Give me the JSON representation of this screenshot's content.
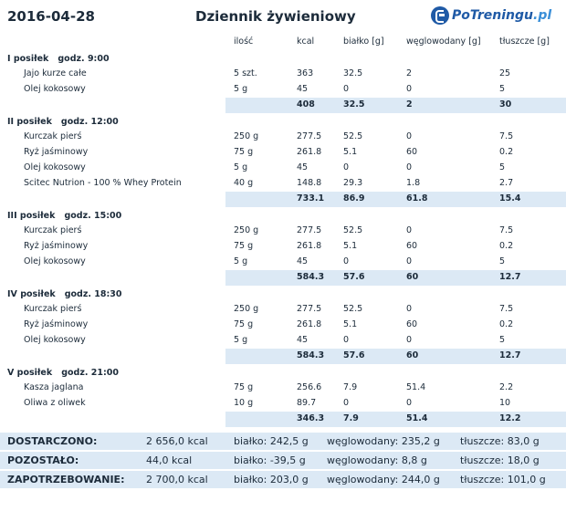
{
  "header": {
    "date": "2016-04-28",
    "title": "Dziennik żywieniowy",
    "logo_part1": "PoTreningu",
    "logo_part2": ".pl"
  },
  "columns": {
    "qty": "ilość",
    "kcal": "kcal",
    "protein": "białko [g]",
    "carbs": "węglowodany [g]",
    "fat": "tłuszcze [g]"
  },
  "meals": [
    {
      "name": "I posiłek",
      "hour": "godz. 9:00",
      "items": [
        {
          "name": "Jajo kurze całe",
          "qty": "5 szt.",
          "kcal": "363",
          "protein": "32.5",
          "carbs": "2",
          "fat": "25"
        },
        {
          "name": "Olej kokosowy",
          "qty": "5 g",
          "kcal": "45",
          "protein": "0",
          "carbs": "0",
          "fat": "5"
        }
      ],
      "sum": {
        "kcal": "408",
        "protein": "32.5",
        "carbs": "2",
        "fat": "30"
      }
    },
    {
      "name": "II posiłek",
      "hour": "godz. 12:00",
      "items": [
        {
          "name": "Kurczak pierś",
          "qty": "250 g",
          "kcal": "277.5",
          "protein": "52.5",
          "carbs": "0",
          "fat": "7.5"
        },
        {
          "name": "Ryż jaśminowy",
          "qty": "75 g",
          "kcal": "261.8",
          "protein": "5.1",
          "carbs": "60",
          "fat": "0.2"
        },
        {
          "name": "Olej kokosowy",
          "qty": "5 g",
          "kcal": "45",
          "protein": "0",
          "carbs": "0",
          "fat": "5"
        },
        {
          "name": "Scitec Nutrion - 100 % Whey Protein",
          "qty": "40 g",
          "kcal": "148.8",
          "protein": "29.3",
          "carbs": "1.8",
          "fat": "2.7"
        }
      ],
      "sum": {
        "kcal": "733.1",
        "protein": "86.9",
        "carbs": "61.8",
        "fat": "15.4"
      }
    },
    {
      "name": "III posiłek",
      "hour": "godz. 15:00",
      "items": [
        {
          "name": "Kurczak pierś",
          "qty": "250 g",
          "kcal": "277.5",
          "protein": "52.5",
          "carbs": "0",
          "fat": "7.5"
        },
        {
          "name": "Ryż jaśminowy",
          "qty": "75 g",
          "kcal": "261.8",
          "protein": "5.1",
          "carbs": "60",
          "fat": "0.2"
        },
        {
          "name": "Olej kokosowy",
          "qty": "5 g",
          "kcal": "45",
          "protein": "0",
          "carbs": "0",
          "fat": "5"
        }
      ],
      "sum": {
        "kcal": "584.3",
        "protein": "57.6",
        "carbs": "60",
        "fat": "12.7"
      }
    },
    {
      "name": "IV posiłek",
      "hour": "godz. 18:30",
      "items": [
        {
          "name": "Kurczak pierś",
          "qty": "250 g",
          "kcal": "277.5",
          "protein": "52.5",
          "carbs": "0",
          "fat": "7.5"
        },
        {
          "name": "Ryż jaśminowy",
          "qty": "75 g",
          "kcal": "261.8",
          "protein": "5.1",
          "carbs": "60",
          "fat": "0.2"
        },
        {
          "name": "Olej kokosowy",
          "qty": "5 g",
          "kcal": "45",
          "protein": "0",
          "carbs": "0",
          "fat": "5"
        }
      ],
      "sum": {
        "kcal": "584.3",
        "protein": "57.6",
        "carbs": "60",
        "fat": "12.7"
      }
    },
    {
      "name": "V posiłek",
      "hour": "godz. 21:00",
      "items": [
        {
          "name": "Kasza jaglana",
          "qty": "75 g",
          "kcal": "256.6",
          "protein": "7.9",
          "carbs": "51.4",
          "fat": "2.2"
        },
        {
          "name": "Oliwa z oliwek",
          "qty": "10 g",
          "kcal": "89.7",
          "protein": "0",
          "carbs": "0",
          "fat": "10"
        }
      ],
      "sum": {
        "kcal": "346.3",
        "protein": "7.9",
        "carbs": "51.4",
        "fat": "12.2"
      }
    }
  ],
  "totals": [
    {
      "label": "DOSTARCZONO:",
      "kcal": "2 656,0 kcal",
      "protein": "białko: 242,5 g",
      "carbs": "węglowodany: 235,2 g",
      "fat": "tłuszcze: 83,0 g"
    },
    {
      "label": "POZOSTAŁO:",
      "kcal": "44,0 kcal",
      "protein": "białko: -39,5 g",
      "carbs": "węglowodany: 8,8 g",
      "fat": "tłuszcze: 18,0 g"
    },
    {
      "label": "ZAPOTRZEBOWANIE:",
      "kcal": "2 700,0 kcal",
      "protein": "białko: 203,0 g",
      "carbs": "węglowodany: 244,0 g",
      "fat": "tłuszcze: 101,0 g"
    }
  ]
}
